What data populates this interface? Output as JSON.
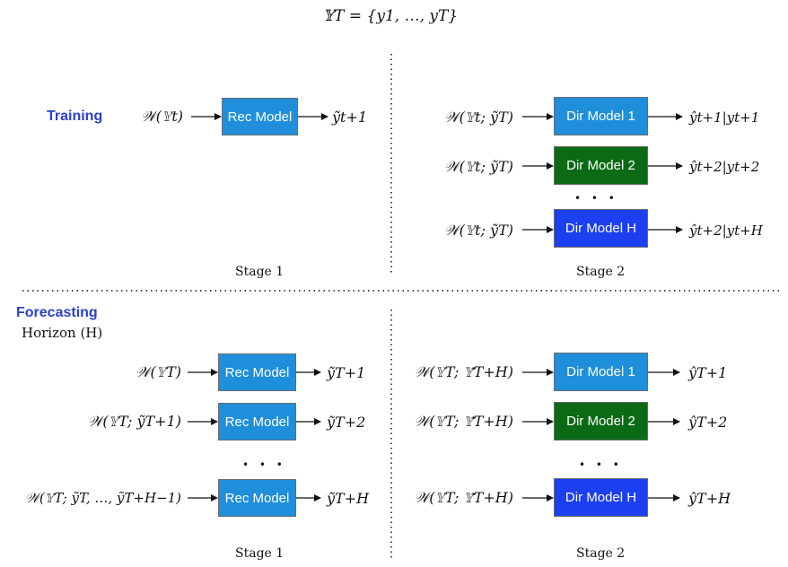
{
  "header": {
    "formula": "𝕐T = {y1, …, yT}"
  },
  "training": {
    "label": "Training",
    "stage1": {
      "input": "𝒲(𝕐t)",
      "model": "Rec Model",
      "output": "ỹt+1",
      "stage_label": "Stage 1"
    },
    "stage2": {
      "rows": [
        {
          "input": "𝒲(𝕐t; ỹT)",
          "model": "Dir Model 1",
          "output": "ŷt+1|yt+1"
        },
        {
          "input": "𝒲(𝕐t; ỹT)",
          "model": "Dir Model 2",
          "output": "ŷt+2|yt+2"
        },
        {
          "input": "𝒲(𝕐t; ỹT)",
          "model": "Dir Model H",
          "output": "ŷt+2|yt+H"
        }
      ],
      "ellipsis": "• • •",
      "stage_label": "Stage 2"
    }
  },
  "forecasting": {
    "label": "Forecasting",
    "horizon": "Horizon (H)",
    "stage1": {
      "rows": [
        {
          "input": "𝒲(𝕐T)",
          "model": "Rec Model",
          "output": "ỹT+1"
        },
        {
          "input": "𝒲(𝕐T; ỹT+1)",
          "model": "Rec Model",
          "output": "ỹT+2"
        },
        {
          "input": "𝒲(𝕐T; ỹT, …, ỹT+H−1)",
          "model": "Rec Model",
          "output": "ỹT+H"
        }
      ],
      "ellipsis": "• • •",
      "stage_label": "Stage 1"
    },
    "stage2": {
      "rows": [
        {
          "input": "𝒲(𝕐T; 𝕐̃T+H)",
          "model": "Dir Model 1",
          "output": "ŷT+1"
        },
        {
          "input": "𝒲(𝕐T; 𝕐̃T+H)",
          "model": "Dir Model 2",
          "output": "ŷT+2"
        },
        {
          "input": "𝒲(𝕐T; 𝕐̃T+H)",
          "model": "Dir Model H",
          "output": "ŷT+H"
        }
      ],
      "ellipsis": "• • •",
      "stage_label": "Stage 2"
    }
  }
}
